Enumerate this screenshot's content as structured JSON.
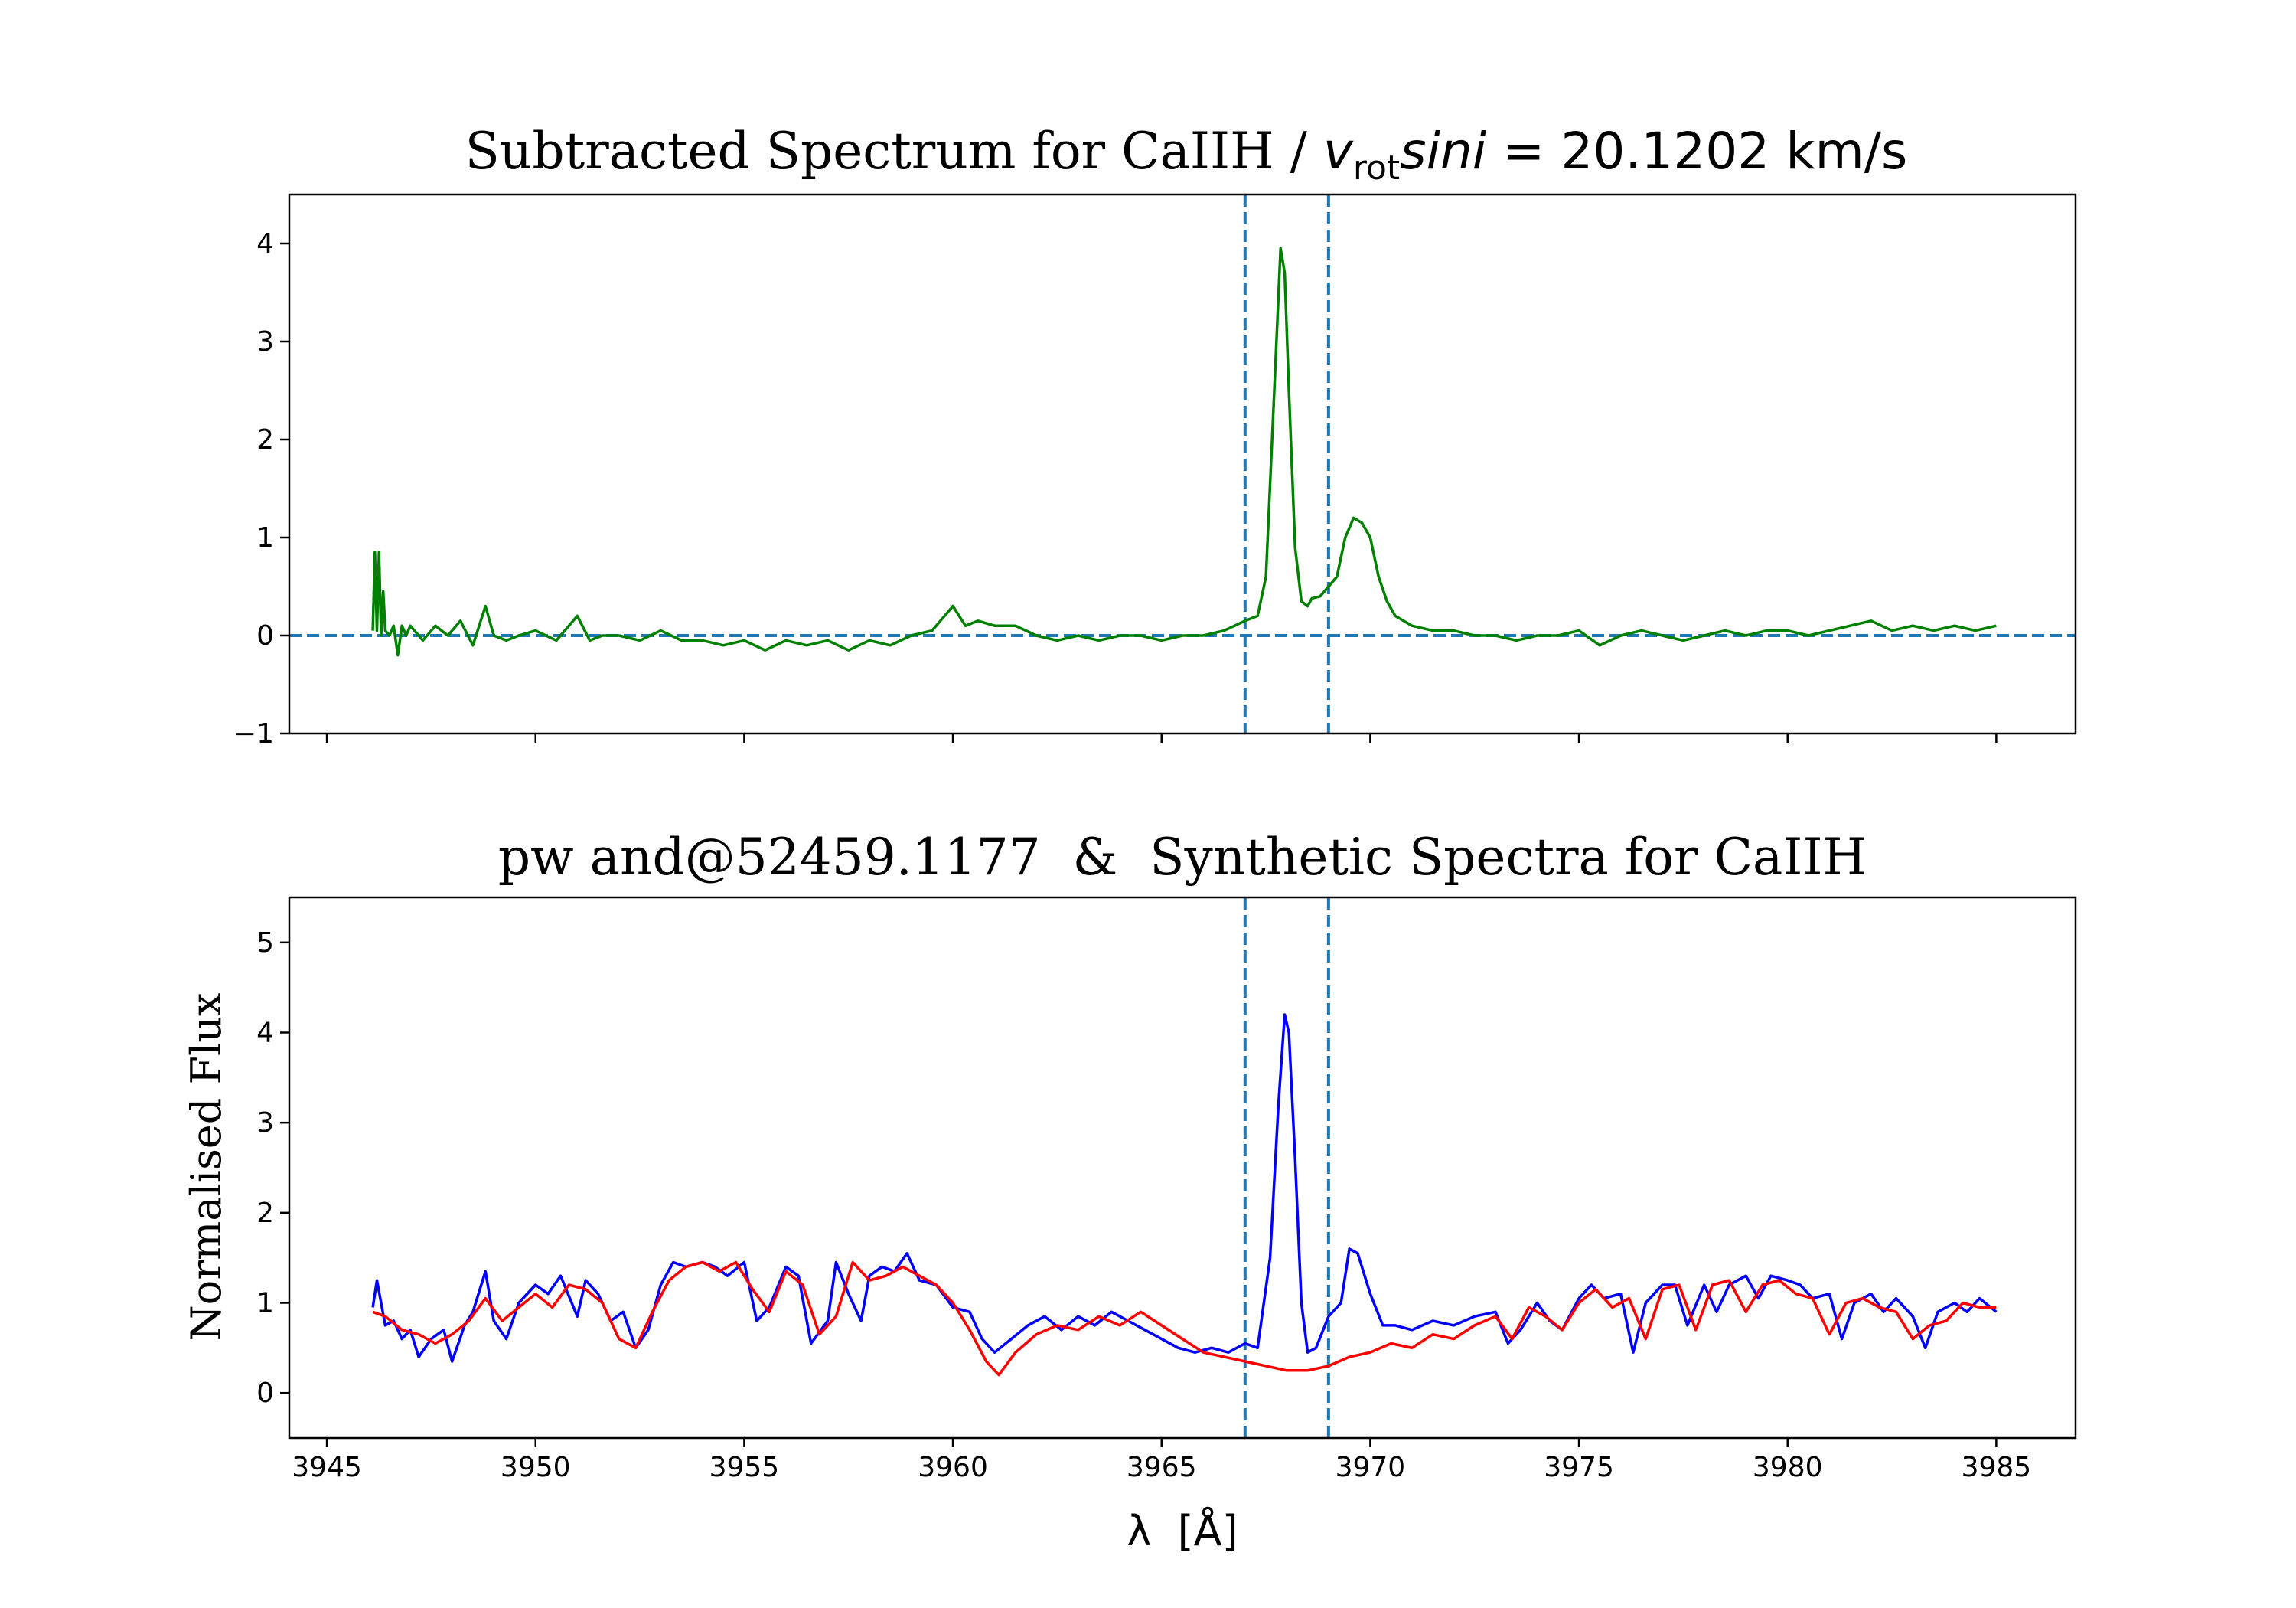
{
  "chart_data": [
    {
      "type": "line",
      "title_prefix": "Subtracted Spectrum for CaIIH / ",
      "title_v": "v",
      "title_sub": "rot",
      "title_sini": "sini",
      "title_suffix": " = 20.1202 km/s",
      "xlim": [
        3944.1,
        3986.9
      ],
      "ylim": [
        -1,
        4.5
      ],
      "yticks": [
        -1,
        0,
        1,
        2,
        3,
        4
      ],
      "ytick_labels": [
        "−1",
        "0",
        "1",
        "2",
        "3",
        "4"
      ],
      "xticks": [
        3945,
        3950,
        3955,
        3960,
        3965,
        3970,
        3975,
        3980,
        3985
      ],
      "xtick_labels_visible": false,
      "hline": 0,
      "vlines": [
        3967.0,
        3969.0
      ],
      "series": [
        {
          "name": "subtracted",
          "color": "#008000",
          "x": [
            3946.1,
            3946.15,
            3946.2,
            3946.25,
            3946.3,
            3946.35,
            3946.4,
            3946.5,
            3946.6,
            3946.7,
            3946.8,
            3946.9,
            3947.0,
            3947.3,
            3947.6,
            3947.9,
            3948.2,
            3948.5,
            3948.8,
            3949.0,
            3949.3,
            3949.6,
            3950.0,
            3950.5,
            3951.0,
            3951.3,
            3951.6,
            3952.0,
            3952.5,
            3953.0,
            3953.5,
            3954.0,
            3954.5,
            3955.0,
            3955.5,
            3956.0,
            3956.5,
            3957.0,
            3957.5,
            3958.0,
            3958.5,
            3959.0,
            3959.5,
            3960.0,
            3960.3,
            3960.6,
            3961.0,
            3961.5,
            3962.0,
            3962.5,
            3963.0,
            3963.5,
            3964.0,
            3964.5,
            3965.0,
            3965.5,
            3966.0,
            3966.5,
            3967.0,
            3967.3,
            3967.5,
            3967.7,
            3967.85,
            3967.95,
            3968.05,
            3968.2,
            3968.35,
            3968.5,
            3968.6,
            3968.8,
            3969.0,
            3969.2,
            3969.4,
            3969.6,
            3969.8,
            3970.0,
            3970.2,
            3970.4,
            3970.6,
            3971.0,
            3971.5,
            3972.0,
            3972.5,
            3973.0,
            3973.5,
            3974.0,
            3974.5,
            3975.0,
            3975.5,
            3976.0,
            3976.5,
            3977.0,
            3977.5,
            3978.0,
            3978.5,
            3979.0,
            3979.5,
            3980.0,
            3980.5,
            3981.0,
            3981.5,
            3982.0,
            3982.5,
            3983.0,
            3983.5,
            3984.0,
            3984.5,
            3985.0
          ],
          "values": [
            0.05,
            0.85,
            0.05,
            0.85,
            0.0,
            0.45,
            0.05,
            0.0,
            0.1,
            -0.2,
            0.1,
            0.0,
            0.1,
            -0.05,
            0.1,
            0.0,
            0.15,
            -0.1,
            0.3,
            0.0,
            -0.05,
            0.0,
            0.05,
            -0.05,
            0.2,
            -0.05,
            0.0,
            0.0,
            -0.05,
            0.05,
            -0.05,
            -0.05,
            -0.1,
            -0.05,
            -0.15,
            -0.05,
            -0.1,
            -0.05,
            -0.15,
            -0.05,
            -0.1,
            0.0,
            0.05,
            0.3,
            0.1,
            0.15,
            0.1,
            0.1,
            0.0,
            -0.05,
            0.0,
            -0.05,
            0.0,
            0.0,
            -0.05,
            0.0,
            0.0,
            0.05,
            0.15,
            0.2,
            0.6,
            2.5,
            3.95,
            3.7,
            2.5,
            0.9,
            0.35,
            0.3,
            0.38,
            0.4,
            0.5,
            0.6,
            1.0,
            1.2,
            1.15,
            1.0,
            0.6,
            0.35,
            0.2,
            0.1,
            0.05,
            0.05,
            0.0,
            0.0,
            -0.05,
            0.0,
            0.0,
            0.05,
            -0.1,
            0.0,
            0.05,
            0.0,
            -0.05,
            0.0,
            0.05,
            0.0,
            0.05,
            0.05,
            0.0,
            0.05,
            0.1,
            0.15,
            0.05,
            0.1,
            0.05,
            0.1,
            0.05,
            0.1
          ]
        }
      ]
    },
    {
      "type": "line",
      "title": "pw and@52459.1177  &  Synthetic Spectra for CaIIH",
      "ylabel": "Normalised Flux",
      "xlabel": "λ  [Å]",
      "xlim": [
        3944.1,
        3986.9
      ],
      "ylim": [
        -0.5,
        5.5
      ],
      "yticks": [
        0,
        1,
        2,
        3,
        4,
        5
      ],
      "ytick_labels": [
        "0",
        "1",
        "2",
        "3",
        "4",
        "5"
      ],
      "xticks": [
        3945,
        3950,
        3955,
        3960,
        3965,
        3970,
        3975,
        3980,
        3985
      ],
      "xtick_labels": [
        "3945",
        "3950",
        "3955",
        "3960",
        "3965",
        "3970",
        "3975",
        "3980",
        "3985"
      ],
      "vlines": [
        3967.0,
        3969.0
      ],
      "series": [
        {
          "name": "observed",
          "color": "#0000ff",
          "x": [
            3946.1,
            3946.2,
            3946.4,
            3946.6,
            3946.8,
            3947.0,
            3947.2,
            3947.5,
            3947.8,
            3948.0,
            3948.3,
            3948.5,
            3948.8,
            3949.0,
            3949.3,
            3949.6,
            3950.0,
            3950.3,
            3950.6,
            3951.0,
            3951.2,
            3951.5,
            3951.8,
            3952.1,
            3952.4,
            3952.7,
            3953.0,
            3953.3,
            3953.6,
            3954.0,
            3954.3,
            3954.6,
            3955.0,
            3955.3,
            3955.6,
            3956.0,
            3956.3,
            3956.6,
            3957.0,
            3957.2,
            3957.5,
            3957.8,
            3958.0,
            3958.3,
            3958.6,
            3958.9,
            3959.2,
            3959.6,
            3960.0,
            3960.4,
            3960.7,
            3961.0,
            3961.4,
            3961.8,
            3962.2,
            3962.6,
            3963.0,
            3963.4,
            3963.8,
            3964.2,
            3964.6,
            3965.0,
            3965.4,
            3965.8,
            3966.2,
            3966.6,
            3967.0,
            3967.3,
            3967.6,
            3967.8,
            3967.95,
            3968.05,
            3968.2,
            3968.35,
            3968.5,
            3968.7,
            3969.0,
            3969.3,
            3969.5,
            3969.7,
            3970.0,
            3970.3,
            3970.6,
            3971.0,
            3971.5,
            3972.0,
            3972.5,
            3973.0,
            3973.3,
            3973.6,
            3974.0,
            3974.3,
            3974.6,
            3975.0,
            3975.3,
            3975.6,
            3976.0,
            3976.3,
            3976.6,
            3977.0,
            3977.3,
            3977.6,
            3978.0,
            3978.3,
            3978.6,
            3979.0,
            3979.3,
            3979.6,
            3980.0,
            3980.3,
            3980.6,
            3981.0,
            3981.3,
            3981.6,
            3982.0,
            3982.3,
            3982.6,
            3983.0,
            3983.3,
            3983.6,
            3984.0,
            3984.3,
            3984.6,
            3985.0
          ],
          "values": [
            0.95,
            1.25,
            0.75,
            0.8,
            0.6,
            0.7,
            0.4,
            0.6,
            0.7,
            0.35,
            0.75,
            0.9,
            1.35,
            0.8,
            0.6,
            1.0,
            1.2,
            1.1,
            1.3,
            0.85,
            1.25,
            1.1,
            0.8,
            0.9,
            0.5,
            0.7,
            1.2,
            1.45,
            1.4,
            1.45,
            1.4,
            1.3,
            1.45,
            0.8,
            0.95,
            1.4,
            1.3,
            0.55,
            0.8,
            1.45,
            1.1,
            0.8,
            1.3,
            1.4,
            1.35,
            1.55,
            1.25,
            1.2,
            0.95,
            0.9,
            0.6,
            0.45,
            0.6,
            0.75,
            0.85,
            0.7,
            0.85,
            0.75,
            0.9,
            0.8,
            0.7,
            0.6,
            0.5,
            0.45,
            0.5,
            0.45,
            0.55,
            0.5,
            1.5,
            3.2,
            4.2,
            4.0,
            2.6,
            1.0,
            0.45,
            0.5,
            0.85,
            1.0,
            1.6,
            1.55,
            1.1,
            0.75,
            0.75,
            0.7,
            0.8,
            0.75,
            0.85,
            0.9,
            0.55,
            0.7,
            1.0,
            0.8,
            0.7,
            1.05,
            1.2,
            1.05,
            1.1,
            0.45,
            1.0,
            1.2,
            1.2,
            0.75,
            1.2,
            0.9,
            1.2,
            1.3,
            1.05,
            1.3,
            1.25,
            1.2,
            1.05,
            1.1,
            0.6,
            1.0,
            1.1,
            0.9,
            1.05,
            0.85,
            0.5,
            0.9,
            1.0,
            0.9,
            1.05,
            0.9
          ]
        },
        {
          "name": "synthetic",
          "color": "#ff0000",
          "x": [
            3946.1,
            3946.4,
            3946.8,
            3947.2,
            3947.6,
            3948.0,
            3948.4,
            3948.8,
            3949.2,
            3949.6,
            3950.0,
            3950.4,
            3950.8,
            3951.2,
            3951.6,
            3952.0,
            3952.4,
            3952.8,
            3953.2,
            3953.6,
            3954.0,
            3954.4,
            3954.8,
            3955.2,
            3955.6,
            3956.0,
            3956.4,
            3956.8,
            3957.2,
            3957.6,
            3958.0,
            3958.4,
            3958.8,
            3959.2,
            3959.6,
            3960.0,
            3960.4,
            3960.8,
            3961.1,
            3961.5,
            3962.0,
            3962.5,
            3963.0,
            3963.5,
            3964.0,
            3964.5,
            3965.0,
            3965.5,
            3966.0,
            3966.5,
            3967.0,
            3967.5,
            3968.0,
            3968.5,
            3969.0,
            3969.5,
            3970.0,
            3970.5,
            3971.0,
            3971.5,
            3972.0,
            3972.5,
            3973.0,
            3973.4,
            3973.8,
            3974.2,
            3974.6,
            3975.0,
            3975.4,
            3975.8,
            3976.2,
            3976.6,
            3977.0,
            3977.4,
            3977.8,
            3978.2,
            3978.6,
            3979.0,
            3979.4,
            3979.8,
            3980.2,
            3980.6,
            3981.0,
            3981.4,
            3981.8,
            3982.2,
            3982.6,
            3983.0,
            3983.4,
            3983.8,
            3984.2,
            3984.6,
            3985.0
          ],
          "values": [
            0.9,
            0.85,
            0.7,
            0.65,
            0.55,
            0.65,
            0.8,
            1.05,
            0.8,
            0.95,
            1.1,
            0.95,
            1.2,
            1.15,
            1.0,
            0.6,
            0.5,
            0.9,
            1.25,
            1.4,
            1.45,
            1.35,
            1.45,
            1.15,
            0.9,
            1.35,
            1.2,
            0.65,
            0.85,
            1.45,
            1.25,
            1.3,
            1.4,
            1.3,
            1.2,
            1.0,
            0.7,
            0.35,
            0.2,
            0.45,
            0.65,
            0.75,
            0.7,
            0.85,
            0.75,
            0.9,
            0.75,
            0.6,
            0.45,
            0.4,
            0.35,
            0.3,
            0.25,
            0.25,
            0.3,
            0.4,
            0.45,
            0.55,
            0.5,
            0.65,
            0.6,
            0.75,
            0.85,
            0.6,
            0.95,
            0.85,
            0.7,
            1.0,
            1.15,
            0.95,
            1.05,
            0.6,
            1.15,
            1.2,
            0.7,
            1.2,
            1.25,
            0.9,
            1.2,
            1.25,
            1.1,
            1.05,
            0.65,
            1.0,
            1.05,
            0.95,
            0.9,
            0.6,
            0.75,
            0.8,
            1.0,
            0.95,
            0.95
          ]
        }
      ]
    }
  ]
}
